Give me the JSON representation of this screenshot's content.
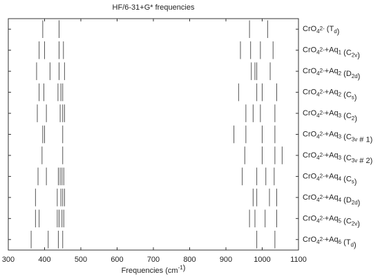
{
  "chart_data": {
    "type": "stick",
    "title": "HF/6-31+G* frequencies",
    "xlabel": [
      "Frequencies (cm",
      {
        "text": "-1",
        "pos": "sup"
      },
      ")"
    ],
    "categories": [
      [
        "CrO",
        {
          "text": "4",
          "pos": "sub"
        },
        {
          "text": "2-",
          "pos": "sup"
        },
        " (T",
        {
          "text": "d",
          "pos": "sub"
        },
        ")"
      ],
      [
        "CrO",
        {
          "text": "4",
          "pos": "sub"
        },
        {
          "text": "2-",
          "pos": "sup"
        },
        "+Aq",
        {
          "text": "1",
          "pos": "sub"
        },
        " (C",
        {
          "text": "2v",
          "pos": "sub"
        },
        ")"
      ],
      [
        "CrO",
        {
          "text": "4",
          "pos": "sub"
        },
        {
          "text": "2-",
          "pos": "sup"
        },
        "+Aq",
        {
          "text": "2",
          "pos": "sub"
        },
        " (D",
        {
          "text": "2d",
          "pos": "sub"
        },
        ")"
      ],
      [
        "CrO",
        {
          "text": "4",
          "pos": "sub"
        },
        {
          "text": "2-",
          "pos": "sup"
        },
        "+Aq",
        {
          "text": "2",
          "pos": "sub"
        },
        " (C",
        {
          "text": "s",
          "pos": "sub"
        },
        ")"
      ],
      [
        "CrO",
        {
          "text": "4",
          "pos": "sub"
        },
        {
          "text": "2-",
          "pos": "sup"
        },
        "+Aq",
        {
          "text": "3",
          "pos": "sub"
        },
        " (C",
        {
          "text": "2",
          "pos": "sub"
        },
        ")"
      ],
      [
        "CrO",
        {
          "text": "4",
          "pos": "sub"
        },
        {
          "text": "2-",
          "pos": "sup"
        },
        "+Aq",
        {
          "text": "3",
          "pos": "sub"
        },
        " (C",
        {
          "text": "3v",
          "pos": "sub"
        },
        " # 1)"
      ],
      [
        "CrO",
        {
          "text": "4",
          "pos": "sub"
        },
        {
          "text": "2-",
          "pos": "sup"
        },
        "+Aq",
        {
          "text": "3",
          "pos": "sub"
        },
        " (C",
        {
          "text": "3v",
          "pos": "sub"
        },
        " # 2)"
      ],
      [
        "CrO",
        {
          "text": "4",
          "pos": "sub"
        },
        {
          "text": "2-",
          "pos": "sup"
        },
        "+Aq",
        {
          "text": "4",
          "pos": "sub"
        },
        " (C",
        {
          "text": "s",
          "pos": "sub"
        },
        ")"
      ],
      [
        "CrO",
        {
          "text": "4",
          "pos": "sub"
        },
        {
          "text": "2-",
          "pos": "sup"
        },
        "+Aq",
        {
          "text": "4",
          "pos": "sub"
        },
        " (D",
        {
          "text": "2d",
          "pos": "sub"
        },
        ")"
      ],
      [
        "CrO",
        {
          "text": "4",
          "pos": "sub"
        },
        {
          "text": "2-",
          "pos": "sup"
        },
        "+Aq",
        {
          "text": "5",
          "pos": "sub"
        },
        " (C",
        {
          "text": "2v",
          "pos": "sub"
        },
        ")"
      ],
      [
        "CrO",
        {
          "text": "4",
          "pos": "sub"
        },
        {
          "text": "2-",
          "pos": "sup"
        },
        "+Aq",
        {
          "text": "6",
          "pos": "sub"
        },
        " (T",
        {
          "text": "d",
          "pos": "sub"
        },
        ")"
      ]
    ],
    "values": [
      [
        395,
        440,
        965,
        1015
      ],
      [
        385,
        400,
        440,
        452,
        940,
        968,
        995,
        1030
      ],
      [
        378,
        415,
        440,
        455,
        970,
        980,
        985,
        1022
      ],
      [
        385,
        398,
        437,
        445,
        450,
        935,
        985,
        1000,
        1040
      ],
      [
        380,
        405,
        443,
        450,
        455,
        955,
        975,
        995,
        1035
      ],
      [
        395,
        400,
        450,
        922,
        955,
        1000,
        1035
      ],
      [
        393,
        450,
        952,
        1000,
        1035,
        1055
      ],
      [
        382,
        405,
        438,
        443,
        448,
        453,
        945,
        985,
        1010,
        1033
      ],
      [
        375,
        435,
        445,
        450,
        455,
        975,
        985,
        1020,
        1040
      ],
      [
        375,
        385,
        435,
        440,
        448,
        453,
        965,
        980,
        1008,
        1040
      ],
      [
        363,
        410,
        438,
        450,
        985,
        1035
      ]
    ],
    "color": "#555555",
    "xlim": [
      300,
      1100
    ],
    "xticks": [
      300,
      400,
      500,
      600,
      700,
      800,
      900,
      1000,
      1100
    ]
  }
}
